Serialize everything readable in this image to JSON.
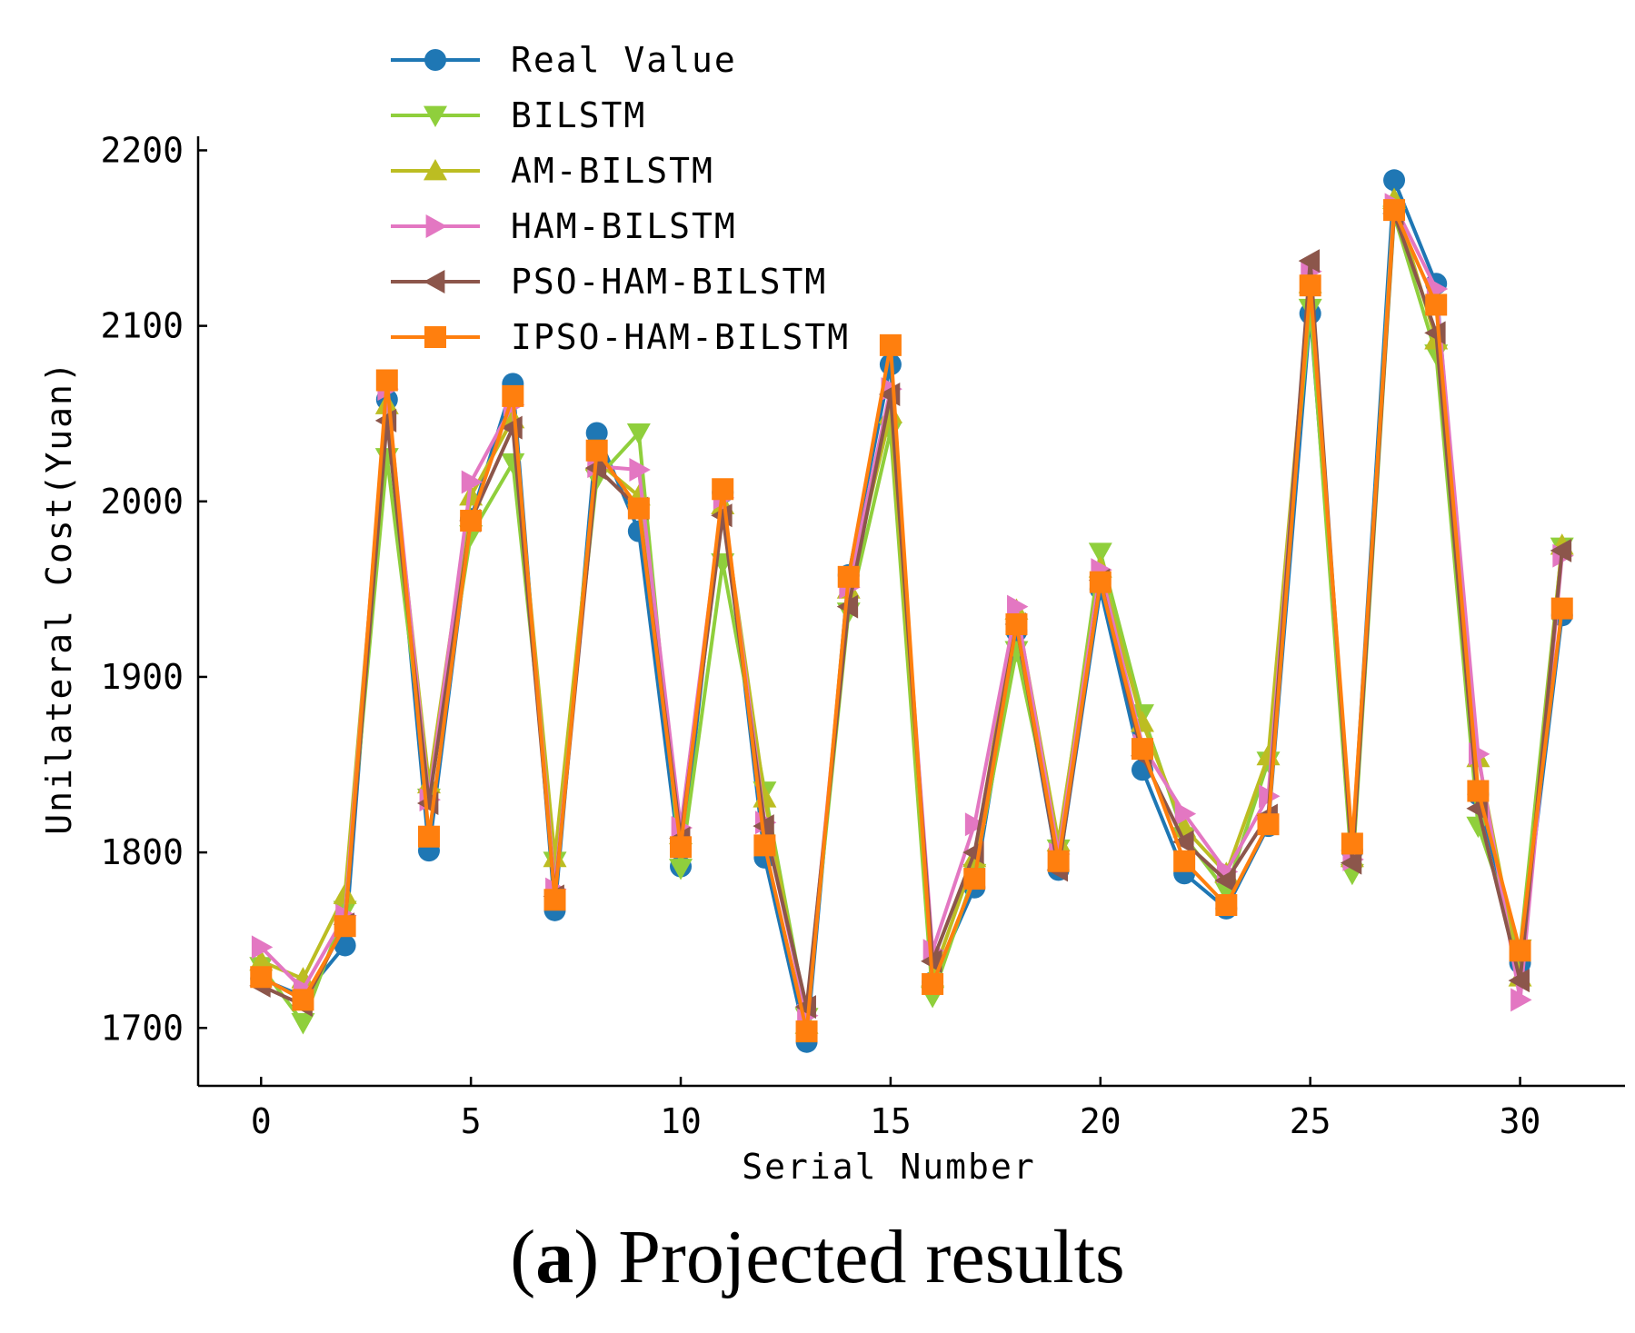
{
  "chart_data": {
    "type": "line",
    "title": "",
    "xlabel": "Serial Number",
    "ylabel": "Unilateral Cost(Yuan)",
    "xlim": [
      -1.5,
      32.5
    ],
    "ylim": [
      1667,
      2208
    ],
    "xticks": [
      0,
      5,
      10,
      15,
      20,
      25,
      30
    ],
    "yticks": [
      1700,
      1800,
      1900,
      2000,
      2100,
      2200
    ],
    "legend_position": "top-left",
    "x": [
      0,
      1,
      2,
      3,
      4,
      5,
      6,
      7,
      8,
      9,
      10,
      11,
      12,
      13,
      14,
      15,
      16,
      17,
      18,
      19,
      20,
      21,
      22,
      23,
      24,
      25,
      26,
      27,
      28,
      29,
      30,
      31
    ],
    "series": [
      {
        "name": "Real Value",
        "color": "#1f77b4",
        "marker": "circle",
        "values": [
          1728,
          1718,
          1747,
          2058,
          1801,
          1990,
          2067,
          1767,
          2039,
          1983,
          1792,
          2005,
          1797,
          1692,
          1958,
          2078,
          1726,
          1780,
          1926,
          1790,
          1950,
          1847,
          1788,
          1768,
          1815,
          2107,
          1801,
          2183,
          2124,
          1833,
          1737,
          1935
        ]
      },
      {
        "name": "BILSTM",
        "color": "#8fcf3c",
        "marker": "triangle-down",
        "values": [
          1735,
          1703,
          1767,
          2025,
          1831,
          1981,
          2022,
          1795,
          2013,
          2039,
          1791,
          1965,
          1835,
          1706,
          1937,
          2040,
          1718,
          1788,
          1915,
          1802,
          1971,
          1879,
          1809,
          1778,
          1852,
          2110,
          1788,
          2163,
          2084,
          1815,
          1745,
          1974
        ]
      },
      {
        "name": "AM-BILSTM",
        "color": "#bcbd22",
        "marker": "triangle-up",
        "values": [
          1738,
          1728,
          1776,
          2055,
          1839,
          2003,
          2047,
          1797,
          2023,
          2003,
          1810,
          1998,
          1831,
          1702,
          1950,
          2050,
          1729,
          1797,
          1938,
          1806,
          1962,
          1874,
          1814,
          1788,
          1855,
          2124,
          1797,
          2172,
          2092,
          1854,
          1729,
          1975
        ]
      },
      {
        "name": "HAM-BILSTM",
        "color": "#e377c2",
        "marker": "triangle-right",
        "values": [
          1746,
          1722,
          1764,
          2064,
          1830,
          2011,
          2055,
          1779,
          2020,
          2018,
          1814,
          2002,
          1817,
          1707,
          1951,
          2064,
          1744,
          1816,
          1940,
          1799,
          1961,
          1861,
          1822,
          1789,
          1832,
          2131,
          1796,
          2169,
          2121,
          1856,
          1716,
          1969
        ]
      },
      {
        "name": "PSO-HAM-BILSTM",
        "color": "#8c564b",
        "marker": "triangle-left",
        "values": [
          1724,
          1713,
          1759,
          2046,
          1828,
          1989,
          2042,
          1775,
          2019,
          1996,
          1808,
          1992,
          1815,
          1712,
          1940,
          2061,
          1738,
          1800,
          1930,
          1790,
          1955,
          1855,
          1806,
          1784,
          1821,
          2137,
          1794,
          2164,
          2096,
          1825,
          1727,
          1972
        ]
      },
      {
        "name": "IPSO-HAM-BILSTM",
        "color": "#ff7f0e",
        "marker": "square",
        "values": [
          1729,
          1716,
          1758,
          2069,
          1809,
          1989,
          2060,
          1773,
          2029,
          1996,
          1803,
          2007,
          1804,
          1698,
          1957,
          2089,
          1725,
          1785,
          1930,
          1795,
          1954,
          1859,
          1795,
          1770,
          1816,
          2123,
          1805,
          2166,
          2112,
          1835,
          1744,
          1939
        ]
      }
    ]
  },
  "caption": {
    "label": "a",
    "text": "Projected results"
  }
}
